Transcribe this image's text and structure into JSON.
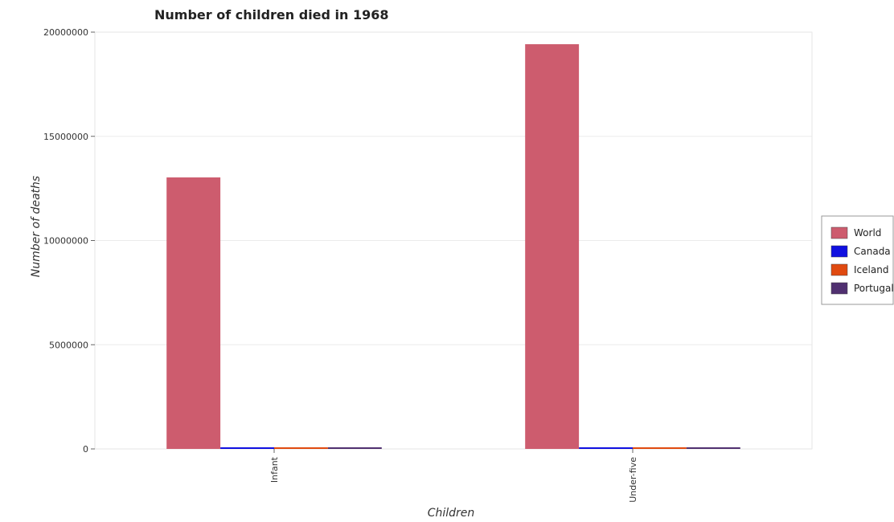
{
  "chart_data": {
    "type": "bar",
    "title": "Number of children died in 1968",
    "xlabel": "Children",
    "ylabel": "Number of deaths",
    "categories": [
      "Infant",
      "Under-five"
    ],
    "series": [
      {
        "name": "World",
        "color": "#cd5c6e",
        "values": [
          13030000,
          19420000
        ]
      },
      {
        "name": "Canada",
        "color": "#1010e0",
        "values": [
          8200,
          10100
        ]
      },
      {
        "name": "Iceland",
        "color": "#e04a10",
        "values": [
          70,
          90
        ]
      },
      {
        "name": "Portugal",
        "color": "#503070",
        "values": [
          11500,
          13700
        ]
      }
    ],
    "ylim": [
      0,
      20000000
    ],
    "yticks": [
      0,
      5000000,
      10000000,
      15000000,
      20000000
    ],
    "ytick_labels": [
      "0",
      "5000000",
      "10000000",
      "15000000",
      "20000000"
    ],
    "grid": true,
    "legend_position": "right"
  }
}
